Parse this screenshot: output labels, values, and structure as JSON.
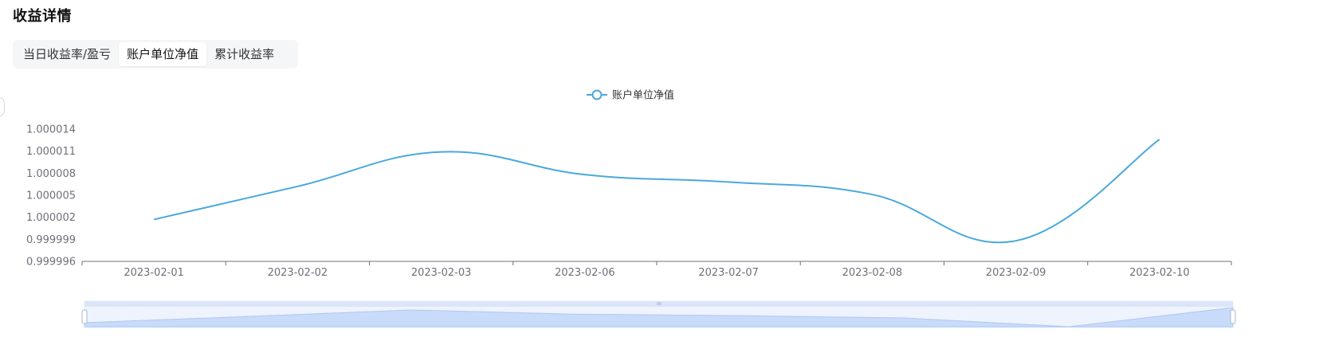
{
  "header": {
    "title": "收益详情"
  },
  "tabs": [
    {
      "label": "当日收益率/盈亏",
      "active": false
    },
    {
      "label": "账户单位净值",
      "active": true
    },
    {
      "label": "累计收益率",
      "active": false
    }
  ],
  "colors": {
    "series_line": "#4aa9db",
    "axis": "#6e7079",
    "zoom_fill": "#d6e3fb",
    "zoom_border": "#aec8f2"
  },
  "chart_data": {
    "type": "line",
    "categories": [
      "2023-02-01",
      "2023-02-02",
      "2023-02-03",
      "2023-02-06",
      "2023-02-07",
      "2023-02-08",
      "2023-02-09",
      "2023-02-10"
    ],
    "series": [
      {
        "name": "账户单位净值",
        "values": [
          1.0000017,
          1.0000062,
          1.0000109,
          1.0000078,
          1.0000068,
          1.0000051,
          0.9999988,
          1.0000126
        ]
      }
    ],
    "y_ticks": [
      "0.999996",
      "0.999999",
      "1.000002",
      "1.000005",
      "1.000008",
      "1.000011",
      "1.000014"
    ],
    "ylim": [
      0.999996,
      1.000014
    ],
    "legend_position": "top-center",
    "grid": false,
    "smooth": true,
    "data_zoom": {
      "start": 0,
      "end": 100
    }
  }
}
